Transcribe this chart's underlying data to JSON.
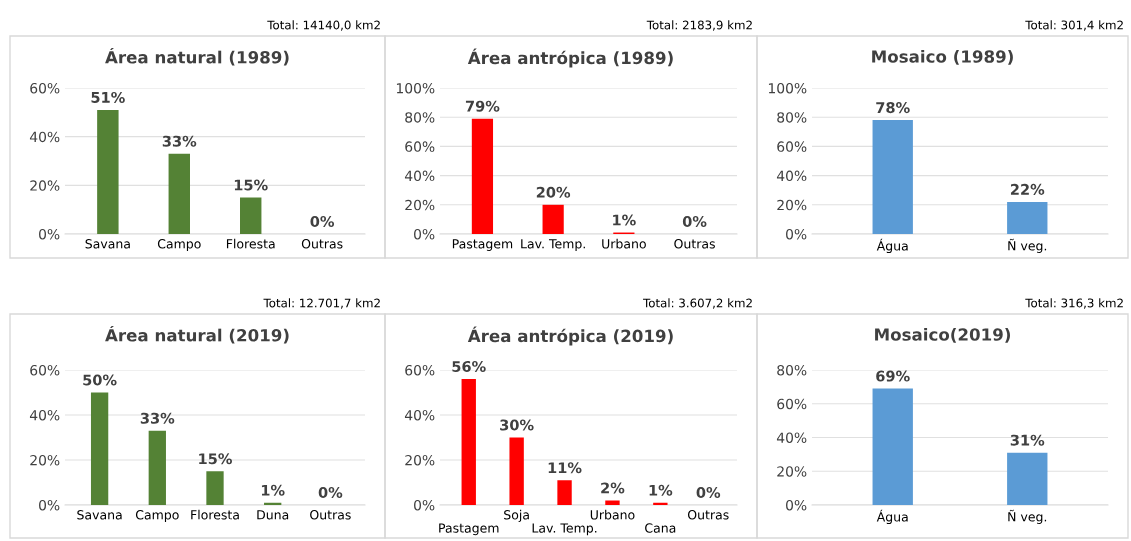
{
  "chart_data": [
    {
      "type": "bar",
      "title": "Área natural (1989)",
      "annotations": [
        "Total: 14140,0 km2"
      ],
      "categories": [
        "Savana",
        "Campo",
        "Floresta",
        "Outras"
      ],
      "values": [
        51,
        33,
        15,
        0
      ],
      "value_labels": [
        "51%",
        "33%",
        "15%",
        "0%"
      ],
      "color": "#548235",
      "ylim": [
        0,
        60
      ],
      "yticks": [
        {
          "value": 0,
          "label": "0%"
        },
        {
          "value": 20,
          "label": "20%"
        },
        {
          "value": 40,
          "label": "40%"
        },
        {
          "value": 60,
          "label": "60%"
        }
      ],
      "grid": "y"
    },
    {
      "type": "bar",
      "title": "Área antrópica (1989)",
      "annotations": [
        "Total: 2183,9 km2"
      ],
      "categories": [
        "Pastagem",
        "Lav. Temp.",
        "Urbano",
        "Outras"
      ],
      "values": [
        79,
        20,
        1,
        0
      ],
      "value_labels": [
        "79%",
        "20%",
        "1%",
        "0%"
      ],
      "color": "#ff0000",
      "ylim": [
        0,
        100
      ],
      "yticks": [
        {
          "value": 0,
          "label": "0%"
        },
        {
          "value": 20,
          "label": "20%"
        },
        {
          "value": 40,
          "label": "40%"
        },
        {
          "value": 60,
          "label": "60%"
        },
        {
          "value": 80,
          "label": "80%"
        },
        {
          "value": 100,
          "label": "100%"
        }
      ],
      "grid": "y"
    },
    {
      "type": "bar",
      "title": "Mosaico (1989)",
      "annotations": [
        "Total: 301,4 km2"
      ],
      "categories": [
        "Água",
        "Ñ veg."
      ],
      "values": [
        78,
        22
      ],
      "value_labels": [
        "78%",
        "22%"
      ],
      "color": "#5b9bd5",
      "ylim": [
        0,
        100
      ],
      "yticks": [
        {
          "value": 0,
          "label": "0%"
        },
        {
          "value": 20,
          "label": "20%"
        },
        {
          "value": 40,
          "label": "40%"
        },
        {
          "value": 60,
          "label": "60%"
        },
        {
          "value": 80,
          "label": "80%"
        },
        {
          "value": 100,
          "label": "100%"
        }
      ],
      "grid": "y"
    },
    {
      "type": "bar",
      "title": "Área natural (2019)",
      "annotations": [
        "Total: 12.701,7 km2"
      ],
      "categories": [
        "Savana",
        "Campo",
        "Floresta",
        "Duna",
        "Outras"
      ],
      "values": [
        50,
        33,
        15,
        1,
        0
      ],
      "value_labels": [
        "50%",
        "33%",
        "15%",
        "1%",
        "0%"
      ],
      "color": "#548235",
      "ylim": [
        0,
        60
      ],
      "yticks": [
        {
          "value": 0,
          "label": "0%"
        },
        {
          "value": 20,
          "label": "20%"
        },
        {
          "value": 40,
          "label": "40%"
        },
        {
          "value": 60,
          "label": "60%"
        }
      ],
      "grid": "y"
    },
    {
      "type": "bar",
      "title": "Área antrópica (2019)",
      "annotations": [
        "Total: 3.607,2 km2"
      ],
      "categories": [
        "Pastagem",
        "Soja",
        "Lav. Temp.",
        "Urbano",
        "Cana",
        "Outras"
      ],
      "values": [
        56,
        30,
        11,
        2,
        1,
        0
      ],
      "value_labels": [
        "56%",
        "30%",
        "11%",
        "2%",
        "1%",
        "0%"
      ],
      "color": "#ff0000",
      "ylim": [
        0,
        60
      ],
      "yticks": [
        {
          "value": 0,
          "label": "0%"
        },
        {
          "value": 20,
          "label": "20%"
        },
        {
          "value": 40,
          "label": "40%"
        },
        {
          "value": 60,
          "label": "60%"
        }
      ],
      "grid": "y"
    },
    {
      "type": "bar",
      "title": "Mosaico(2019)",
      "annotations": [
        "Total: 316,3 km2"
      ],
      "categories": [
        "Água",
        "Ñ veg."
      ],
      "values": [
        69,
        31
      ],
      "value_labels": [
        "69%",
        "31%"
      ],
      "color": "#5b9bd5",
      "ylim": [
        0,
        80
      ],
      "yticks": [
        {
          "value": 0,
          "label": "0%"
        },
        {
          "value": 20,
          "label": "20%"
        },
        {
          "value": 40,
          "label": "40%"
        },
        {
          "value": 60,
          "label": "60%"
        },
        {
          "value": 80,
          "label": "80%"
        }
      ],
      "grid": "y"
    }
  ]
}
